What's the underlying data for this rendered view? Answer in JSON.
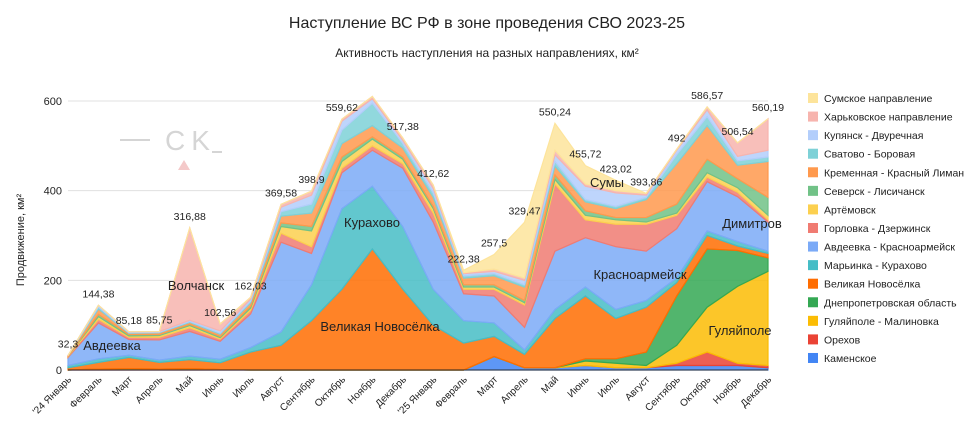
{
  "chart_data": {
    "type": "stacked_area",
    "title": "Наступление ВС РФ в зоне проведения СВО 2023-25",
    "subtitle": "Активность наступления на разных направлениях, км²",
    "y_label": "Продвижение, км²",
    "watermark": "CK",
    "categories": [
      "'24 Январь",
      "Февраль",
      "Март",
      "Апрель",
      "Май",
      "Июнь",
      "Июль",
      "Август",
      "Сентябрь",
      "Октябрь",
      "Ноябрь",
      "Декабрь",
      "'25 Январь",
      "Февраль",
      "Март",
      "Апрель",
      "Май",
      "Июнь",
      "Июль",
      "Август",
      "Сентябрь",
      "Октябрь",
      "Ноябрь",
      "Декабрь"
    ],
    "ylim": [
      0,
      620
    ],
    "yticks": [
      0,
      200,
      400,
      600
    ],
    "grid": true,
    "series": [
      {
        "name": "Каменское",
        "color": "#4285f4",
        "values": [
          0,
          0,
          0,
          0,
          0,
          0,
          0,
          0,
          0,
          0,
          0,
          0,
          0,
          0,
          30,
          5,
          5,
          10,
          5,
          5,
          10,
          10,
          10,
          5
        ]
      },
      {
        "name": "Орехов",
        "color": "#ea4335",
        "values": [
          0,
          2,
          3,
          2,
          3,
          1,
          0,
          0,
          0,
          0,
          0,
          0,
          0,
          0,
          0,
          0,
          0,
          0,
          0,
          0,
          5,
          30,
          5,
          5
        ]
      },
      {
        "name": "Гуляйполе - Малиновка",
        "color": "#fbbc04",
        "values": [
          0,
          0,
          0,
          0,
          0,
          0,
          0,
          0,
          0,
          0,
          0,
          0,
          0,
          0,
          0,
          0,
          0,
          10,
          10,
          5,
          40,
          100,
          171.54,
          210
        ]
      },
      {
        "name": "Днепропетровская область",
        "color": "#34a853",
        "values": [
          0,
          0,
          0,
          0,
          0,
          0,
          0,
          0,
          0,
          0,
          0,
          0,
          0,
          0,
          0,
          0,
          0,
          5,
          10,
          30,
          110,
          130,
          80,
          30
        ]
      },
      {
        "name": "Великая Новосёлка",
        "color": "#ff6d01",
        "values": [
          5,
          15,
          25,
          15,
          20,
          15,
          40,
          55,
          110,
          180,
          270,
          180,
          100,
          60,
          45,
          30,
          110,
          140,
          90,
          100,
          30,
          30,
          10,
          10
        ]
      },
      {
        "name": "Марьинка - Курахово",
        "color": "#46bdc6",
        "values": [
          5,
          8,
          5,
          5,
          8,
          8,
          10,
          30,
          80,
          180,
          140,
          140,
          80,
          50,
          30,
          10,
          20,
          20,
          20,
          15,
          10,
          10,
          10,
          5
        ]
      },
      {
        "name": "Авдеевка - Красноармейск",
        "color": "#7baaf7",
        "values": [
          18,
          80,
          35,
          45,
          55,
          40,
          75,
          200,
          70,
          80,
          80,
          130,
          150,
          60,
          60,
          50,
          130,
          110,
          140,
          110,
          110,
          110,
          100,
          65
        ]
      },
      {
        "name": "Горловка - Дзержинск",
        "color": "#f07b72",
        "values": [
          2,
          8,
          5,
          6,
          8,
          5,
          8,
          20,
          15,
          10,
          10,
          10,
          20,
          10,
          15,
          50,
          150,
          40,
          50,
          60,
          30,
          10,
          10,
          5
        ]
      },
      {
        "name": "Артёмовск",
        "color": "#fcd04f",
        "values": [
          1,
          6,
          3,
          4,
          5,
          3,
          5,
          15,
          35,
          15,
          15,
          10,
          10,
          5,
          5,
          5,
          10,
          10,
          10,
          5,
          5,
          10,
          10,
          10
        ]
      },
      {
        "name": "Северск - Лисичанск",
        "color": "#71c287",
        "values": [
          0,
          5,
          3,
          2,
          3,
          3,
          4,
          8,
          10,
          10,
          5,
          5,
          5,
          5,
          5,
          5,
          10,
          10,
          5,
          10,
          20,
          30,
          20,
          40
        ]
      },
      {
        "name": "Кременная - Красный Лиман",
        "color": "#ff994d",
        "values": [
          1.3,
          12,
          3,
          4,
          4,
          5,
          8,
          15,
          30,
          30,
          25,
          20,
          20,
          15,
          20,
          30,
          20,
          20,
          20,
          40,
          90,
          75,
          30,
          80
        ]
      },
      {
        "name": "Сватово - Боровая",
        "color": "#7ed1d7",
        "values": [
          0,
          4,
          1,
          1,
          2,
          2,
          3,
          10,
          20,
          30,
          50,
          10,
          10,
          5,
          5,
          5,
          10,
          5,
          5,
          5,
          20,
          20,
          10,
          10
        ]
      },
      {
        "name": "Купянск - Двуречная",
        "color": "#b3cefb",
        "values": [
          0,
          4.38,
          2.18,
          1.75,
          3,
          5,
          5,
          10,
          20,
          20,
          10,
          7,
          10,
          5,
          5,
          10,
          15,
          30,
          30,
          5,
          10,
          15,
          10,
          15
        ]
      },
      {
        "name": "Харьковское направление",
        "color": "#f7b4ae",
        "values": [
          0,
          0,
          0,
          0,
          205.88,
          15.56,
          4.03,
          6.58,
          8.9,
          4.62,
          5,
          5.38,
          7.62,
          2,
          5,
          5,
          10,
          5,
          5,
          3.86,
          2,
          6.57,
          30,
          70.19
        ]
      },
      {
        "name": "Сумское направление",
        "color": "#fde49b",
        "values": [
          0,
          0,
          0,
          0,
          0,
          0,
          0,
          0,
          0,
          0,
          0,
          0,
          0,
          5.38,
          32.5,
          124.47,
          60.24,
          40.72,
          23.02,
          0,
          0,
          0,
          0,
          0
        ]
      }
    ],
    "total_labels": [
      "32,3",
      "144,38",
      "85,18",
      "85,75",
      "316,88",
      "102,56",
      "162,03",
      "369,58",
      "398,9",
      "559,62",
      null,
      "517,38",
      "412,62",
      "222,38",
      "257,5",
      "329,47",
      "550,24",
      "455,72",
      "423,02",
      "393,86",
      "492",
      "586,57",
      "506,54",
      "560,19"
    ],
    "annotations": [
      "Авдеевка",
      "Волчанск",
      "Курахово",
      "Великая Новосёлка",
      "Красноармейск",
      "Сумы",
      "Димитров",
      "Гуляйполе"
    ]
  }
}
